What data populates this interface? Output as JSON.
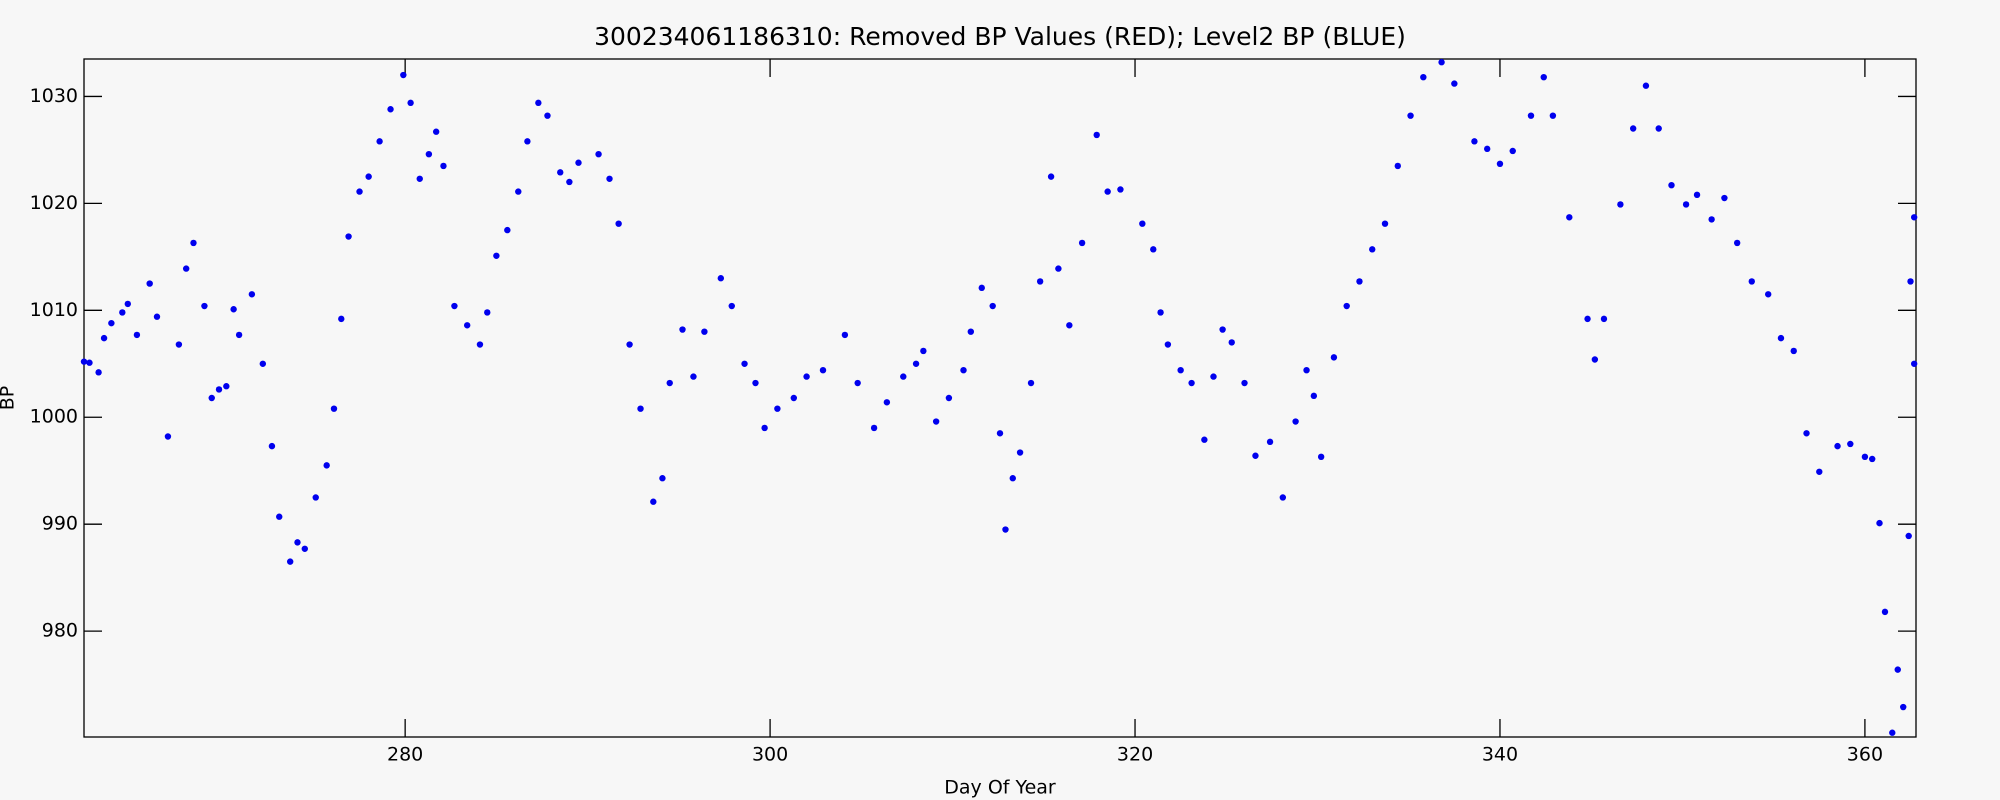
{
  "chart_data": {
    "type": "scatter",
    "title": "300234061186310: Removed BP Values (RED); Level2 BP (BLUE)",
    "xlabel": "Day Of Year",
    "ylabel": "BP",
    "color": "#0000ee",
    "xlim": [
      262.4,
      362.8
    ],
    "ylim": [
      970.1,
      1033.5
    ],
    "xticks": [
      280,
      300,
      320,
      340,
      360
    ],
    "yticks": [
      980,
      990,
      1000,
      1010,
      1020,
      1030
    ],
    "x": [
      262.4,
      262.7,
      263.2,
      263.5,
      263.9,
      264.5,
      264.8,
      265.3,
      266.0,
      266.4,
      267.0,
      267.6,
      268.0,
      268.4,
      269.0,
      269.4,
      269.8,
      270.2,
      270.6,
      270.9,
      271.6,
      272.2,
      272.7,
      273.1,
      273.7,
      274.1,
      274.5,
      275.1,
      275.7,
      276.1,
      276.5,
      276.9,
      277.5,
      278.0,
      278.6,
      279.2,
      279.9,
      280.3,
      280.8,
      281.3,
      281.7,
      282.1,
      282.7,
      283.4,
      284.1,
      284.5,
      285.0,
      285.6,
      286.2,
      286.7,
      287.3,
      287.8,
      288.5,
      289.0,
      289.5,
      290.6,
      291.2,
      291.7,
      292.3,
      292.9,
      293.6,
      294.1,
      294.5,
      295.2,
      295.8,
      296.4,
      297.3,
      297.9,
      298.6,
      299.2,
      299.7,
      300.4,
      301.3,
      302.0,
      302.9,
      304.1,
      304.8,
      305.7,
      306.4,
      307.3,
      308.0,
      308.4,
      309.1,
      309.8,
      310.6,
      311.0,
      311.6,
      312.2,
      312.6,
      312.9,
      313.3,
      313.7,
      314.3,
      314.8,
      315.4,
      315.8,
      316.4,
      317.1,
      317.9,
      318.5,
      319.2,
      320.4,
      321.0,
      321.4,
      321.8,
      322.5,
      323.1,
      323.8,
      324.3,
      324.8,
      325.3,
      326.0,
      326.6,
      327.4,
      328.1,
      328.8,
      329.4,
      329.8,
      330.2,
      330.9,
      331.6,
      332.3,
      333.0,
      333.7,
      334.4,
      335.1,
      335.8,
      336.8,
      337.5,
      338.6,
      339.3,
      340.0,
      340.7,
      341.7,
      342.4,
      342.9,
      343.8,
      344.8,
      345.2,
      345.7,
      346.6,
      347.3,
      348.0,
      348.7,
      349.4,
      350.2,
      350.8,
      351.6,
      352.3,
      353.0,
      353.8,
      354.7,
      355.4,
      356.1,
      356.8,
      357.5,
      358.5,
      359.2,
      360.0,
      360.4,
      360.8,
      361.1,
      361.5,
      361.8,
      362.1,
      362.4,
      362.5,
      362.7,
      362.7
    ],
    "values": [
      1005.2,
      1005.1,
      1004.2,
      1007.4,
      1008.8,
      1009.8,
      1010.6,
      1007.7,
      1012.5,
      1009.4,
      998.2,
      1006.8,
      1013.9,
      1016.3,
      1010.4,
      1001.8,
      1002.6,
      1002.9,
      1010.1,
      1007.7,
      1011.5,
      1005.0,
      997.3,
      990.7,
      986.5,
      988.3,
      987.7,
      992.5,
      995.5,
      1000.8,
      1009.2,
      1016.9,
      1021.1,
      1022.5,
      1025.8,
      1028.8,
      1032.0,
      1029.4,
      1022.3,
      1024.6,
      1026.7,
      1023.5,
      1010.4,
      1008.6,
      1006.8,
      1009.8,
      1015.1,
      1017.5,
      1021.1,
      1025.8,
      1029.4,
      1028.2,
      1022.9,
      1022.0,
      1023.8,
      1024.6,
      1022.3,
      1018.1,
      1006.8,
      1000.8,
      992.1,
      994.3,
      1003.2,
      1008.2,
      1003.8,
      1008.0,
      1013.0,
      1010.4,
      1005.0,
      1003.2,
      999.0,
      1000.8,
      1001.8,
      1003.8,
      1004.4,
      1007.7,
      1003.2,
      999.0,
      1001.4,
      1003.8,
      1005.0,
      1006.2,
      999.6,
      1001.8,
      1004.4,
      1008.0,
      1012.1,
      1010.4,
      998.5,
      989.5,
      994.3,
      996.7,
      1003.2,
      1012.7,
      1022.5,
      1013.9,
      1008.6,
      1016.3,
      1026.4,
      1021.1,
      1021.3,
      1018.1,
      1015.7,
      1009.8,
      1006.8,
      1004.4,
      1003.2,
      997.9,
      1003.8,
      1008.2,
      1007.0,
      1003.2,
      996.4,
      997.7,
      992.5,
      999.6,
      1004.4,
      1002.0,
      996.3,
      1005.6,
      1010.4,
      1012.7,
      1015.7,
      1018.1,
      1023.5,
      1028.2,
      1031.8,
      1033.2,
      1031.2,
      1025.8,
      1025.1,
      1023.7,
      1024.9,
      1028.2,
      1031.8,
      1028.2,
      1018.7,
      1009.2,
      1005.4,
      1009.2,
      1019.9,
      1027.0,
      1031.0,
      1027.0,
      1021.7,
      1019.9,
      1020.8,
      1018.5,
      1020.5,
      1016.3,
      1012.7,
      1011.5,
      1007.4,
      1006.2,
      998.5,
      994.9,
      997.3,
      997.5,
      996.3,
      996.1,
      990.1,
      981.8,
      970.5,
      976.4,
      972.9,
      988.9,
      1012.7,
      1018.7,
      1005.0
    ]
  }
}
